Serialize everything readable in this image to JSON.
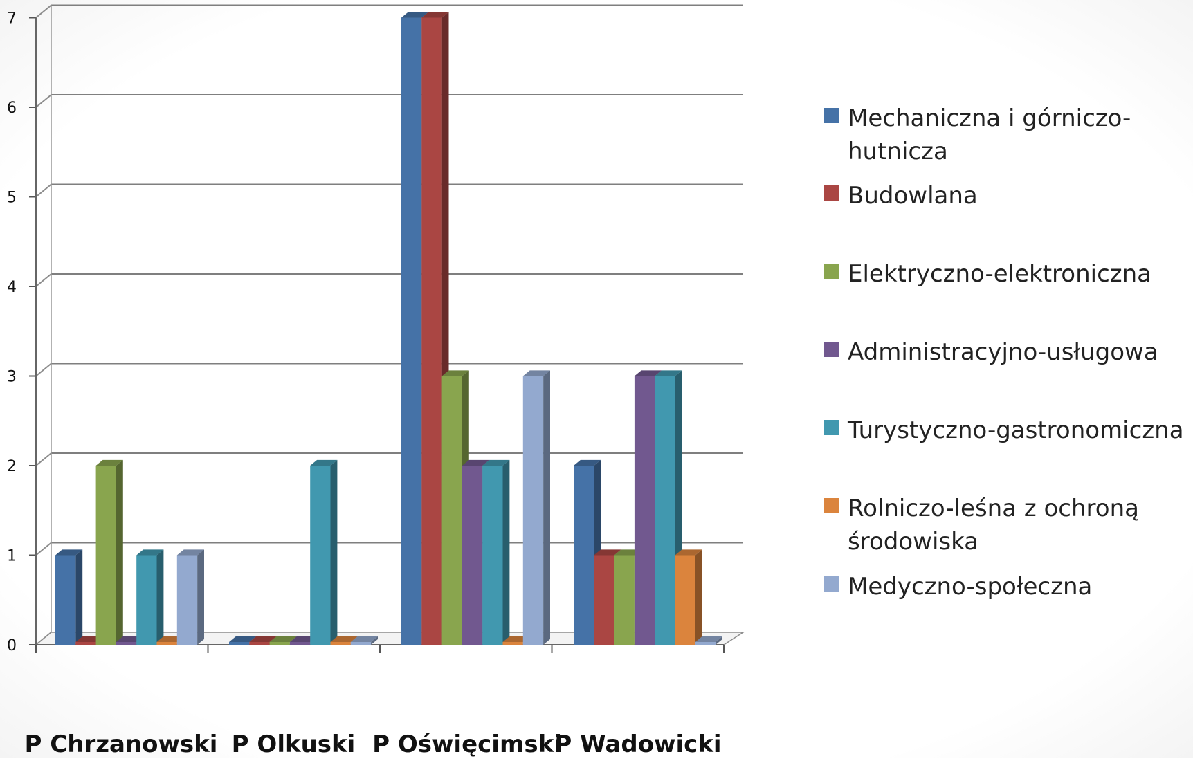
{
  "chart_data": {
    "type": "bar",
    "style": "3d-clustered-column",
    "categories": [
      "P Chrzanowski",
      "P  Olkuski",
      "P Oświęcimski",
      "P Wadowicki"
    ],
    "series": [
      {
        "name": "Mechaniczna i górniczo-hutnicza",
        "color": "#4572a7",
        "values": [
          1,
          0,
          7,
          2
        ]
      },
      {
        "name": "Budowlana",
        "color": "#aa4643",
        "values": [
          0,
          0,
          7,
          1
        ]
      },
      {
        "name": "Elektryczno-elektroniczna",
        "color": "#89a54e",
        "values": [
          2,
          0,
          3,
          1
        ]
      },
      {
        "name": "Administracyjno-usługowa",
        "color": "#71588f",
        "values": [
          0,
          0,
          2,
          3
        ]
      },
      {
        "name": "Turystyczno-gastronomiczna",
        "color": "#4198af",
        "values": [
          1,
          2,
          2,
          3
        ]
      },
      {
        "name": "Rolniczo-leśna z ochroną środowiska",
        "color": "#db843d",
        "values": [
          0,
          0,
          0,
          1
        ]
      },
      {
        "name": "Medyczno-społeczna",
        "color": "#93a9cf",
        "values": [
          1,
          0,
          3,
          0
        ]
      }
    ],
    "legend_lines": [
      [
        "Mechaniczna i górniczo-",
        "hutnicza"
      ],
      [
        "Budowlana"
      ],
      [
        "Elektryczno-elektroniczna"
      ],
      [
        "Administracyjno-usługowa"
      ],
      [
        "Turystyczno-gastronomiczna"
      ],
      [
        "Rolniczo-leśna z ochroną",
        "środowiska"
      ],
      [
        "Medyczno-społeczna"
      ]
    ],
    "yticks": [
      "0",
      "1",
      "2",
      "3",
      "4",
      "5",
      "6",
      "7"
    ],
    "ylim": [
      0,
      7
    ],
    "grid": true,
    "legend_position": "right",
    "title": "",
    "xlabel": "",
    "ylabel": ""
  }
}
